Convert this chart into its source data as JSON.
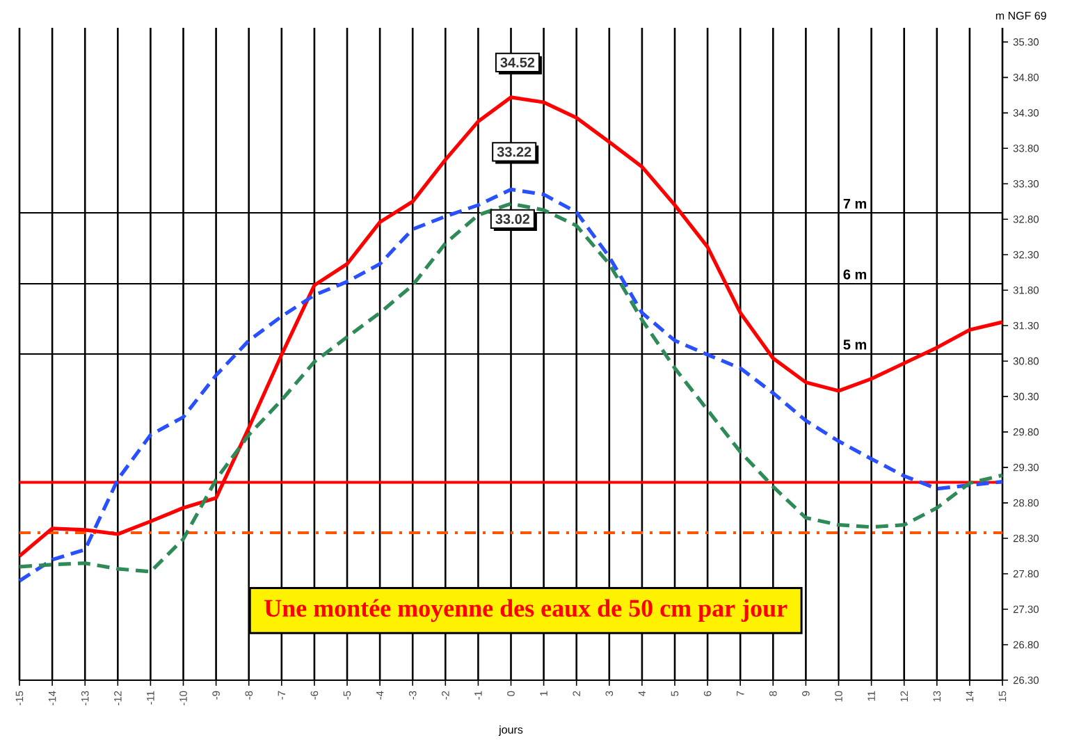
{
  "chart_data": {
    "type": "line",
    "ylabel": "m NGF 69",
    "xlabel": "jours",
    "x": [
      -15,
      -14,
      -13,
      -12,
      -11,
      -10,
      -9,
      -8,
      -7,
      -6,
      -5,
      -4,
      -3,
      -2,
      -1,
      0,
      1,
      2,
      3,
      4,
      5,
      6,
      7,
      8,
      9,
      10,
      11,
      12,
      13,
      14,
      15
    ],
    "series": [
      {
        "color": "#ff0000",
        "line_style": "solid",
        "values": [
          28.05,
          28.44,
          28.42,
          28.36,
          28.54,
          28.73,
          28.87,
          29.86,
          30.89,
          31.87,
          32.17,
          32.76,
          33.05,
          33.64,
          34.18,
          34.52,
          34.45,
          34.23,
          33.89,
          33.54,
          33.0,
          32.41,
          31.48,
          30.84,
          30.5,
          30.38,
          30.55,
          30.77,
          30.99,
          31.24,
          31.35
        ]
      },
      {
        "color": "#2850ff",
        "line_style": "dashed",
        "values": [
          27.7,
          28.0,
          28.14,
          29.13,
          29.76,
          30.01,
          30.6,
          31.09,
          31.43,
          31.73,
          31.92,
          32.17,
          32.66,
          32.84,
          33.0,
          33.22,
          33.15,
          32.9,
          32.27,
          31.48,
          31.09,
          30.89,
          30.7,
          30.35,
          29.96,
          29.67,
          29.42,
          29.18,
          29.0,
          29.05,
          29.1
        ]
      },
      {
        "color": "#2e8b57",
        "line_style": "dashed",
        "values": [
          27.9,
          27.93,
          27.95,
          27.87,
          27.83,
          28.29,
          29.13,
          29.76,
          30.25,
          30.79,
          31.14,
          31.48,
          31.87,
          32.46,
          32.86,
          33.02,
          32.93,
          32.71,
          32.17,
          31.38,
          30.7,
          30.11,
          29.52,
          29.03,
          28.59,
          28.49,
          28.46,
          28.49,
          28.73,
          29.08,
          29.19
        ]
      }
    ],
    "xlim": [
      -15,
      15
    ],
    "ylim": [
      26.3,
      35.5
    ],
    "xticks": [
      -15,
      -14,
      -13,
      -12,
      -11,
      -10,
      -9,
      -8,
      -7,
      -6,
      -5,
      -4,
      -3,
      -2,
      -1,
      0,
      1,
      2,
      3,
      4,
      5,
      6,
      7,
      8,
      9,
      10,
      11,
      12,
      13,
      14,
      15
    ],
    "yticks": [
      {
        "value": 26.3,
        "label": "26.30"
      },
      {
        "value": 26.8,
        "label": "26.80"
      },
      {
        "value": 27.3,
        "label": "27.30"
      },
      {
        "value": 27.8,
        "label": "27.80"
      },
      {
        "value": 28.3,
        "label": "28.30"
      },
      {
        "value": 28.8,
        "label": "28.80"
      },
      {
        "value": 29.3,
        "label": "29.30"
      },
      {
        "value": 29.8,
        "label": "29.80"
      },
      {
        "value": 30.3,
        "label": "30.30"
      },
      {
        "value": 30.8,
        "label": "30.80"
      },
      {
        "value": 31.3,
        "label": "31.30"
      },
      {
        "value": 31.8,
        "label": "31.80"
      },
      {
        "value": 32.3,
        "label": "32.30"
      },
      {
        "value": 32.8,
        "label": "32.80"
      },
      {
        "value": 33.3,
        "label": "33.30"
      },
      {
        "value": 33.8,
        "label": "33.80"
      },
      {
        "value": 34.3,
        "label": "34.30"
      },
      {
        "value": 34.8,
        "label": "34.80"
      },
      {
        "value": 35.3,
        "label": "35.30"
      }
    ],
    "grid": "x",
    "marker": "none",
    "ref_lines": [
      {
        "axis": "y",
        "value": 32.89,
        "label": "7 m",
        "color": "#000000",
        "line_style": "solid"
      },
      {
        "axis": "y",
        "value": 31.89,
        "label": "6 m",
        "color": "#000000",
        "line_style": "solid"
      },
      {
        "axis": "y",
        "value": 30.9,
        "label": "5 m",
        "color": "#000000",
        "line_style": "solid"
      },
      {
        "axis": "y",
        "value": 29.09,
        "color": "#ff0000",
        "line_style": "solid"
      },
      {
        "axis": "y",
        "value": 28.38,
        "color": "#ff5500",
        "line_style": "dashdot"
      }
    ],
    "annotations": [
      {
        "text": "34.52",
        "x": 0.2,
        "y": 34.52
      },
      {
        "text": "33.22",
        "x": 0.1,
        "y": 33.22
      },
      {
        "text": "33.02",
        "x": 0.05,
        "y": 33.02
      },
      "Une montée moyenne des eaux de 50 cm par jour"
    ]
  }
}
